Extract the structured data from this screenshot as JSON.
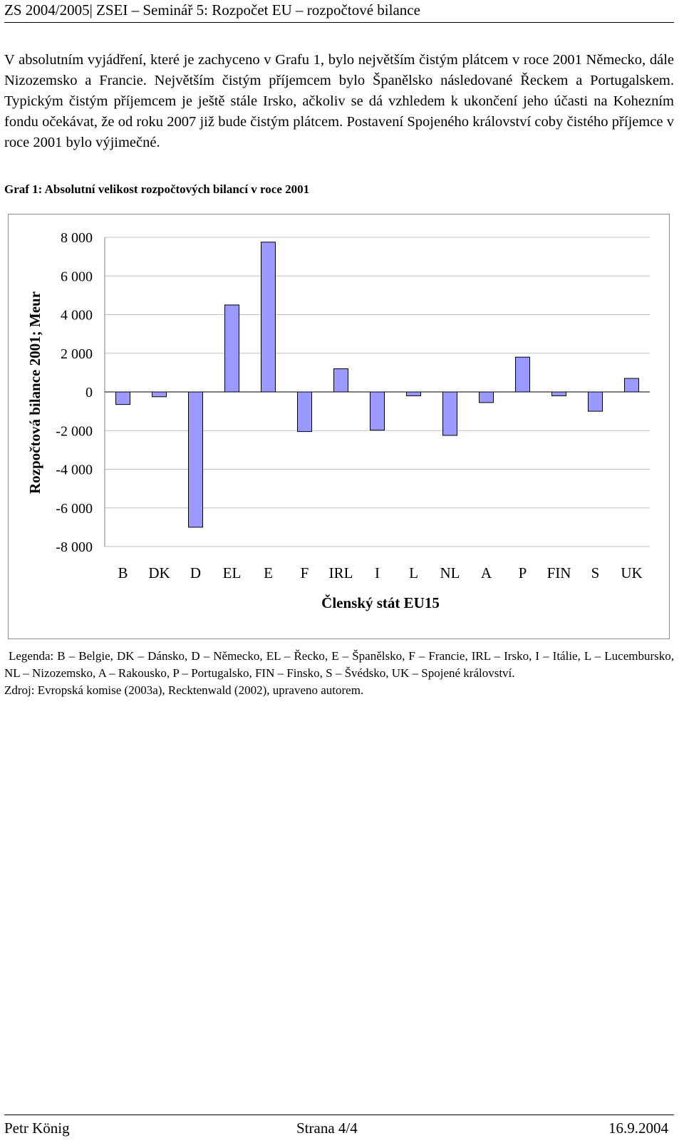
{
  "header": {
    "title": "ZS 2004/2005| ZSEI – Seminář 5: Rozpočet EU – rozpočtové bilance"
  },
  "paragraph": "V absolutním vyjádření, které je zachyceno v Grafu 1, bylo největším čistým plátcem v roce 2001 Německo, dále Nizozemsko a Francie. Největším čistým příjemcem bylo Španělsko následované Řeckem a Portugalskem. Typickým čistým příjemcem je ještě stále Irsko, ačkoliv se dá vzhledem k ukončení jeho účasti na Kohezním fondu očekávat, že od roku 2007 již bude čistým plátcem. Postavení Spojeného království coby čistého příjemce v roce 2001 bylo výjimečné.",
  "graph_caption": "Graf 1: Absolutní velikost rozpočtových bilancí v roce 2001",
  "chart_data": {
    "type": "bar",
    "categories": [
      "B",
      "DK",
      "D",
      "EL",
      "E",
      "F",
      "IRL",
      "I",
      "L",
      "NL",
      "A",
      "P",
      "FIN",
      "S",
      "UK"
    ],
    "values": [
      -650,
      -250,
      -7000,
      4500,
      7750,
      -2050,
      1200,
      -1980,
      -200,
      -2250,
      -550,
      1800,
      -200,
      -1000,
      700
    ],
    "ylabel": "Rozpočtová bilance 2001; Meur",
    "xlabel": "Členský stát EU15",
    "ylim": [
      -8000,
      8000
    ],
    "yticks": [
      8000,
      6000,
      4000,
      2000,
      0,
      -2000,
      -4000,
      -6000,
      -8000
    ],
    "ytick_labels": [
      "8 000",
      "6 000",
      "4 000",
      "2 000",
      "0",
      "-2 000",
      "-4 000",
      "-6 000",
      "-8 000"
    ],
    "bar_color": "#9999ff",
    "grid": true,
    "legend": false
  },
  "legend_text": {
    "line1": "Legenda: B – Belgie, DK – Dánsko, D – Německo, EL – Řecko, E – Španělsko, F – Francie, IRL – Irsko, I – Itálie, L – Lucembursko, NL – Nizozemsko, A – Rakousko, P – Portugalsko, FIN – Finsko, S – Švédsko, UK – Spojené království.",
    "source": "Zdroj: Evropská komise (2003a), Recktenwald (2002), upraveno autorem."
  },
  "footer": {
    "author": "Petr König",
    "page": "Strana 4/4",
    "date": "16.9.2004"
  }
}
